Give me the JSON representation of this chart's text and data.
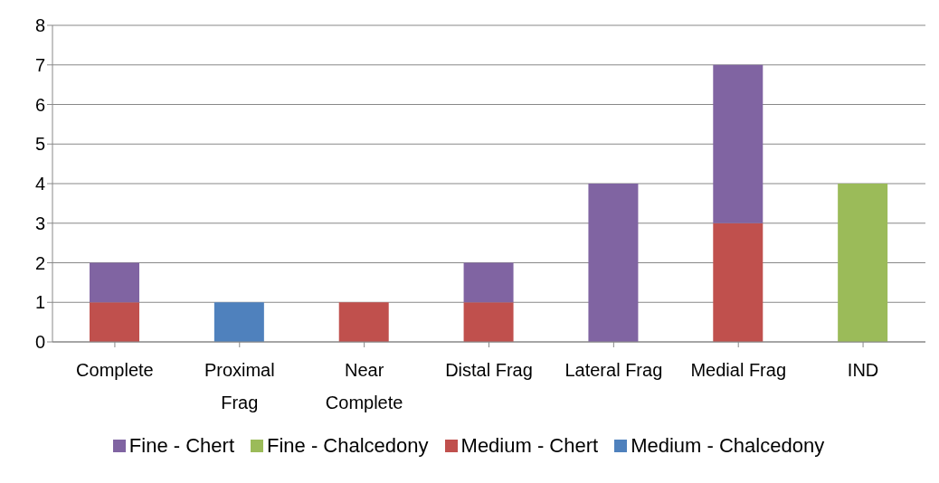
{
  "chart_data": {
    "type": "bar",
    "stacked": true,
    "categories": [
      "Complete",
      "Proximal Frag",
      "Near Complete",
      "Distal Frag",
      "Lateral Frag",
      "Medial Frag",
      "IND"
    ],
    "series": [
      {
        "name": "Medium - Chalcedony",
        "color": "#4f81bd",
        "values": [
          0,
          1,
          0,
          0,
          0,
          0,
          0
        ]
      },
      {
        "name": "Medium - Chert",
        "color": "#c0504d",
        "values": [
          1,
          0,
          1,
          1,
          0,
          3,
          0
        ]
      },
      {
        "name": "Fine - Chalcedony",
        "color": "#9bbb59",
        "values": [
          0,
          0,
          0,
          0,
          0,
          0,
          4
        ]
      },
      {
        "name": "Fine - Chert",
        "color": "#8064a2",
        "values": [
          1,
          0,
          0,
          1,
          4,
          4,
          0
        ]
      }
    ],
    "ylim": [
      0,
      8
    ],
    "yticks": [
      0,
      1,
      2,
      3,
      4,
      5,
      6,
      7,
      8
    ],
    "grid": "y",
    "legend": "bottom"
  }
}
